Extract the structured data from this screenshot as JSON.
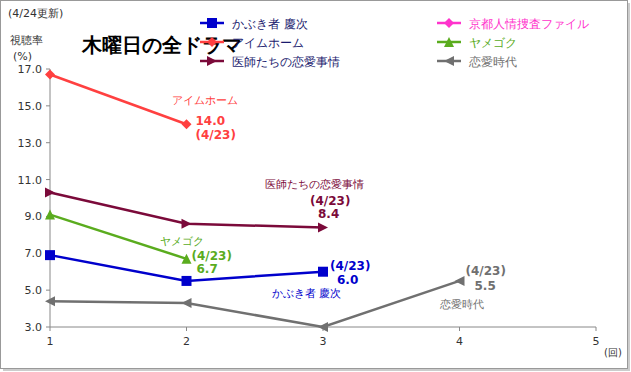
{
  "chart_data": {
    "type": "line",
    "title": "木曜日の全ドラマ",
    "subtitle": "(4/24更新)",
    "y_label": [
      "視聴率",
      "(%)"
    ],
    "x_label": "(回)",
    "x": [
      1,
      2,
      3,
      4
    ],
    "xlim": [
      1,
      5
    ],
    "xticks": [
      1,
      2,
      3,
      4,
      5
    ],
    "ylim": [
      3,
      17
    ],
    "yticks": [
      {
        "value": 3,
        "label": "3.0"
      },
      {
        "value": 5,
        "label": "5.0"
      },
      {
        "value": 7,
        "label": "7.0"
      },
      {
        "value": 9,
        "label": "9.0"
      },
      {
        "value": 11,
        "label": "11.0"
      },
      {
        "value": 13,
        "label": "13.0"
      },
      {
        "value": 15,
        "label": "15.0"
      },
      {
        "value": 17,
        "label": "17.0"
      }
    ],
    "grid": false,
    "legend": "top",
    "series": [
      {
        "name": "かぶき者 慶次",
        "color": "#0000cc",
        "marker": "square",
        "values": [
          6.9,
          5.5,
          6.0,
          null
        ],
        "value_labels": [
          null,
          null,
          "6.0",
          null
        ],
        "annotation": "(4/23)"
      },
      {
        "name": "京都人情捜査ファイル",
        "color": "#ff33cc",
        "marker": "diamond",
        "values": [
          null,
          null,
          null,
          null
        ]
      },
      {
        "name": "アイムホーム",
        "color": "#ff4040",
        "marker": "diamond",
        "values": [
          16.7,
          14.0,
          null,
          null
        ],
        "value_labels": [
          null,
          "14.0",
          null,
          null
        ],
        "annotation": "(4/23)"
      },
      {
        "name": "ヤメゴク",
        "color": "#5aac1e",
        "marker": "triangle",
        "values": [
          9.1,
          6.7,
          null,
          null
        ],
        "value_labels": [
          null,
          "6.7",
          null,
          null
        ],
        "annotation": "(4/23)"
      },
      {
        "name": "医師たちの恋愛事情",
        "color": "#7b0a3a",
        "marker": "triangle-right",
        "values": [
          10.3,
          8.6,
          8.4,
          null
        ],
        "value_labels": [
          null,
          null,
          "8.4",
          null
        ],
        "annotation": "(4/23)"
      },
      {
        "name": "恋愛時代",
        "color": "#707070",
        "marker": "triangle-left",
        "values": [
          4.4,
          4.3,
          3.0,
          5.5
        ],
        "value_labels": [
          null,
          null,
          null,
          "5.5"
        ],
        "annotation": "(4/23)"
      }
    ]
  }
}
